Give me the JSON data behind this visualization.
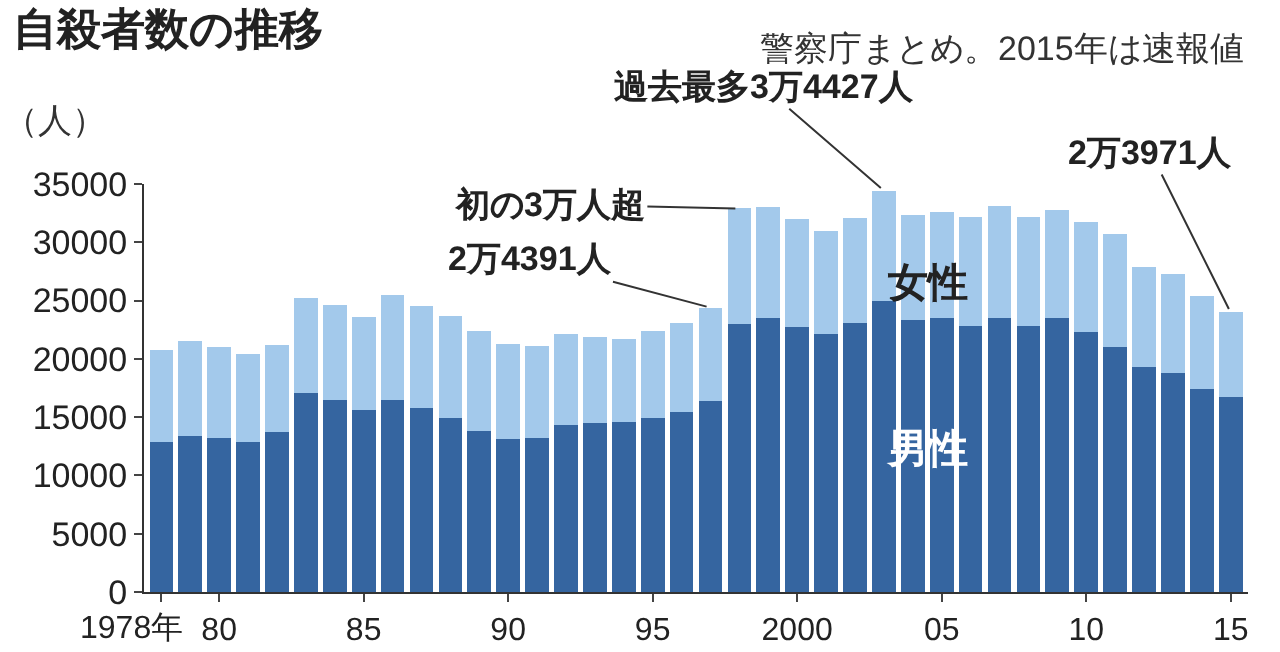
{
  "chart_data": {
    "type": "bar",
    "stacked": true,
    "title": "自殺者数の推移",
    "subtitle": "警察庁まとめ。2015年は速報値",
    "ylabel": "（人）",
    "x": [
      1978,
      1979,
      1980,
      1981,
      1982,
      1983,
      1984,
      1985,
      1986,
      1987,
      1988,
      1989,
      1990,
      1991,
      1992,
      1993,
      1994,
      1995,
      1996,
      1997,
      1998,
      1999,
      2000,
      2001,
      2002,
      2003,
      2004,
      2005,
      2006,
      2007,
      2008,
      2009,
      2010,
      2011,
      2012,
      2013,
      2014,
      2015
    ],
    "series": [
      {
        "name": "男性",
        "color": "#3565a0",
        "values": [
          12900,
          13400,
          13200,
          12900,
          13700,
          17100,
          16500,
          15600,
          16500,
          15800,
          14900,
          13800,
          13100,
          13200,
          14300,
          14500,
          14600,
          14900,
          15400,
          16400,
          23000,
          23500,
          22700,
          22100,
          23100,
          25000,
          23300,
          23500,
          22800,
          23500,
          22800,
          23500,
          22300,
          21000,
          19300,
          18800,
          17400,
          16700
        ]
      },
      {
        "name": "女性",
        "color": "#a3c9eb",
        "values": [
          7900,
          8100,
          7800,
          7500,
          7500,
          8100,
          8100,
          8000,
          9000,
          8700,
          8800,
          8600,
          8200,
          7900,
          7800,
          7400,
          7100,
          7500,
          7700,
          8000,
          9900,
          9500,
          9300,
          8900,
          9000,
          9400,
          9000,
          9100,
          9400,
          9600,
          9400,
          9300,
          9400,
          9700,
          8600,
          8500,
          8000,
          7300
        ]
      }
    ],
    "xlim": [
      1977.4,
      2015.6
    ],
    "xticks": [
      {
        "value": 1978,
        "label": "1978年"
      },
      {
        "value": 1980,
        "label": "80"
      },
      {
        "value": 1985,
        "label": "85"
      },
      {
        "value": 1990,
        "label": "90"
      },
      {
        "value": 1995,
        "label": "95"
      },
      2000,
      {
        "value": 2005,
        "label": "05"
      },
      {
        "value": 2010,
        "label": "10"
      },
      {
        "value": 2015,
        "label": "15"
      }
    ],
    "ylim": [
      0,
      35000
    ],
    "yticks": [
      0,
      5000,
      10000,
      15000,
      20000,
      25000,
      30000,
      35000
    ],
    "annotations": [
      {
        "text": "初の3万人超",
        "x": 1998,
        "y": 32900
      },
      {
        "text": "2万4391人",
        "x": 1997,
        "y": 24391
      },
      {
        "text": "過去最多3万4427人",
        "x": 2003,
        "y": 34427
      },
      {
        "text": "2万3971人",
        "x": 2015,
        "y": 23971
      }
    ],
    "grid": false,
    "legend": false
  }
}
